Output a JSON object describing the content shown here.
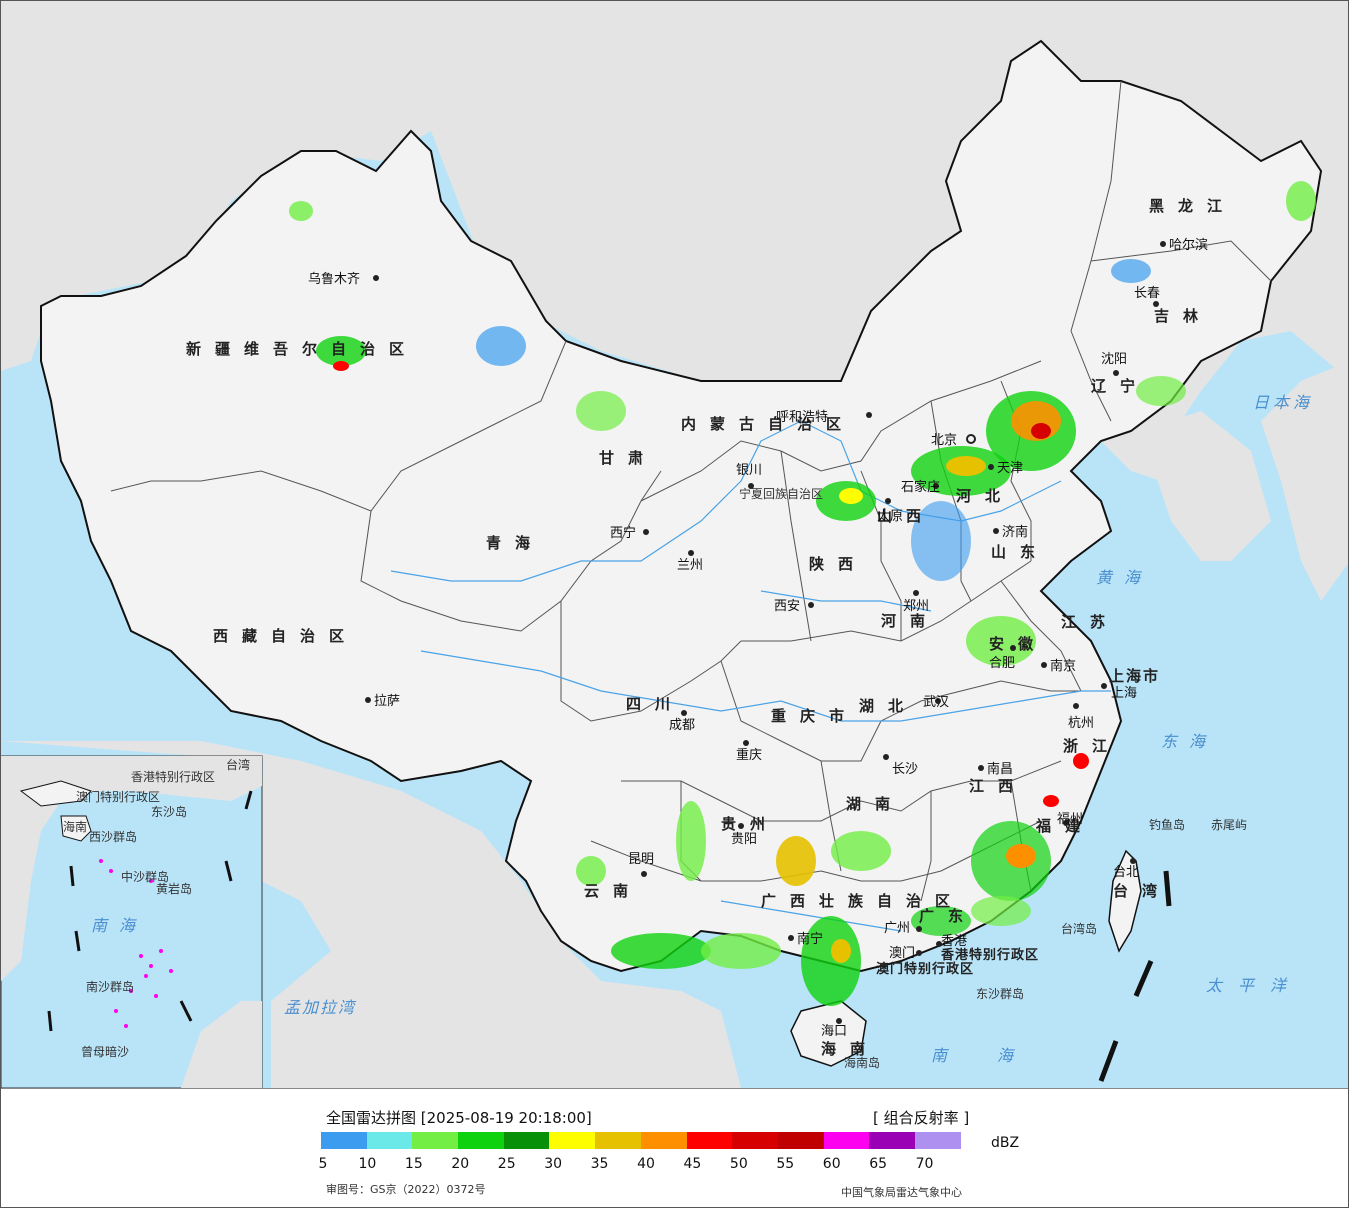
{
  "legend": {
    "title": "全国雷达拼图 [2025-08-19 20:18:00]",
    "product": "[ 组合反射率 ]",
    "unit": "dBZ",
    "approval": "审图号：GS京（2022）0372号",
    "credit": "中国气象局雷达气象中心",
    "ticks": [
      "5",
      "10",
      "15",
      "20",
      "25",
      "30",
      "35",
      "40",
      "45",
      "50",
      "55",
      "60",
      "65",
      "70"
    ],
    "colors": [
      "#3c9cf0",
      "#6be8e8",
      "#72ee45",
      "#0fd20f",
      "#099009",
      "#fefe00",
      "#e6c100",
      "#fe9000",
      "#fe0000",
      "#d60000",
      "#c00000",
      "#fe00f0",
      "#9a00b4",
      "#ad90f0"
    ]
  },
  "map": {
    "colors": {
      "sea": "#b9e4f8",
      "land": "#f3f3f3",
      "foreign": "#e4e4e4",
      "border": "#111111",
      "river": "#4aa3e6"
    },
    "provinces": [
      "新疆维吾尔自治区",
      "西藏自治区",
      "青海",
      "甘肃",
      "内蒙古自治区",
      "黑龙江",
      "吉林",
      "辽宁",
      "河北",
      "山西",
      "山东",
      "河南",
      "陕西",
      "四川",
      "重庆市",
      "湖北",
      "湖南",
      "江西",
      "安徽",
      "江苏",
      "浙江",
      "福建",
      "广东",
      "广西壮族自治区",
      "贵州",
      "云南",
      "海南",
      "台湾",
      "宁夏回族自治区",
      "上海市",
      "香港特别行政区",
      "澳门特别行政区"
    ],
    "cities": [
      "乌鲁木齐",
      "拉萨",
      "西宁",
      "兰州",
      "银川",
      "呼和浩特",
      "北京",
      "天津",
      "石家庄",
      "太原",
      "济南",
      "郑州",
      "西安",
      "成都",
      "重庆",
      "武汉",
      "长沙",
      "南昌",
      "合肥",
      "南京",
      "上海",
      "杭州",
      "福州",
      "台北",
      "广州",
      "香港",
      "澳门",
      "南宁",
      "贵阳",
      "昆明",
      "海口",
      "沈阳",
      "长春",
      "哈尔滨"
    ],
    "seas": [
      "黄海",
      "东海",
      "南海",
      "太平洋",
      "日本海",
      "孟加拉湾"
    ],
    "islands": [
      "钓鱼岛",
      "赤尾屿",
      "台湾岛",
      "海南岛",
      "东沙群岛"
    ],
    "inset_labels": [
      "海南",
      "西沙群岛",
      "中沙群岛",
      "黄岩岛",
      "南海",
      "南沙群岛",
      "曾母暗沙",
      "香港特别行政区",
      "澳门特别行政区",
      "东沙岛",
      "台湾"
    ]
  }
}
